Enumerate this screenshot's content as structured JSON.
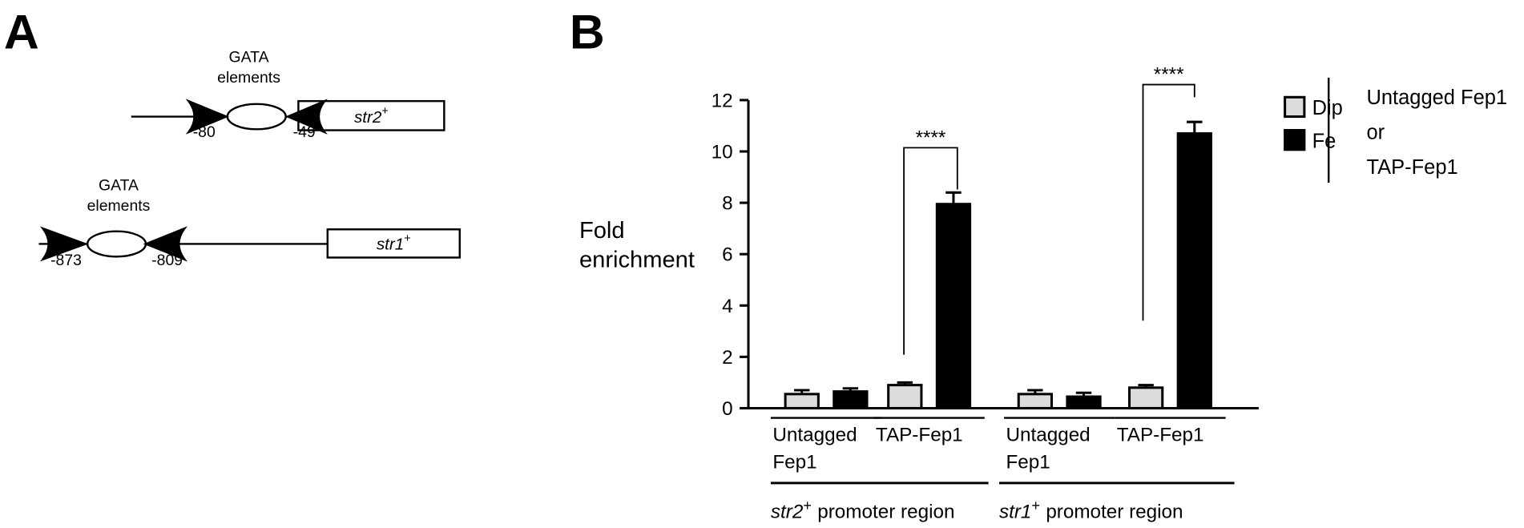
{
  "panel_labels": [
    "A",
    "B"
  ],
  "diagram": {
    "genes": [
      {
        "name": "str2",
        "superscript": "+",
        "gata_label": "GATA elements",
        "positions": [
          "-80",
          "-49"
        ]
      },
      {
        "name": "str1",
        "superscript": "+",
        "gata_label": "GATA elements",
        "positions": [
          "-873",
          "-809"
        ]
      }
    ]
  },
  "chart_data": {
    "type": "bar",
    "y_label": "Fold enrichment",
    "categories": [
      "Untagged Fep1",
      "TAP-Fep1",
      "Untagged Fep1",
      "TAP-Fep1"
    ],
    "series": [
      {
        "name": "Dip",
        "color": "#dcdcdc",
        "values": [
          0.55,
          0.9,
          0.55,
          0.8
        ],
        "errors": [
          0.15,
          0.1,
          0.15,
          0.1
        ]
      },
      {
        "name": "Fe",
        "color": "#000000",
        "values": [
          0.65,
          7.95,
          0.45,
          10.7
        ],
        "errors": [
          0.12,
          0.45,
          0.15,
          0.45
        ]
      }
    ],
    "ylim": [
      0,
      12
    ],
    "yticks": [
      0,
      2,
      4,
      6,
      8,
      10,
      12
    ],
    "regions": [
      {
        "gene": "str2",
        "superscript": "+",
        "label": "promoter region"
      },
      {
        "gene": "str1",
        "superscript": "+",
        "label": "promoter region"
      }
    ],
    "annotations": [
      "****",
      "****"
    ],
    "legend_note": [
      "Untagged Fep1",
      "or",
      "TAP-Fep1"
    ]
  }
}
